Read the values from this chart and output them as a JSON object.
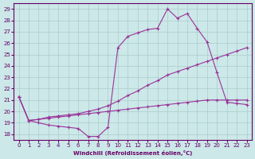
{
  "xlabel": "Windchill (Refroidissement éolien,°C)",
  "ylabel": "",
  "background_color": "#cce8e8",
  "grid_color": "#aacccc",
  "line_color": "#993399",
  "xlim": [
    -0.5,
    23.5
  ],
  "ylim": [
    17.5,
    29.5
  ],
  "xticks": [
    0,
    1,
    2,
    3,
    4,
    5,
    6,
    7,
    8,
    9,
    10,
    11,
    12,
    13,
    14,
    15,
    16,
    17,
    18,
    19,
    20,
    21,
    22,
    23
  ],
  "yticks": [
    18,
    19,
    20,
    21,
    22,
    23,
    24,
    25,
    26,
    27,
    28,
    29
  ],
  "line1_x": [
    0,
    1,
    2,
    3,
    4,
    5,
    6,
    7,
    8,
    9,
    10,
    11,
    12,
    13,
    14,
    15,
    16,
    17,
    18,
    19,
    20,
    21,
    22,
    23
  ],
  "line1_y": [
    21.3,
    19.2,
    19.0,
    18.8,
    18.7,
    18.6,
    18.5,
    17.8,
    17.8,
    18.6,
    25.6,
    26.6,
    26.9,
    27.2,
    27.3,
    29.0,
    28.2,
    28.6,
    27.3,
    26.1,
    23.4,
    20.8,
    20.7,
    20.6
  ],
  "line2_x": [
    0,
    1,
    2,
    3,
    4,
    5,
    6,
    7,
    8,
    9,
    10,
    11,
    12,
    13,
    14,
    15,
    16,
    17,
    18,
    19,
    20,
    21,
    22,
    23
  ],
  "line2_y": [
    21.3,
    19.2,
    19.3,
    19.5,
    19.6,
    19.7,
    19.8,
    20.0,
    20.2,
    20.5,
    20.9,
    21.4,
    21.8,
    22.3,
    22.7,
    23.2,
    23.5,
    23.8,
    24.1,
    24.4,
    24.7,
    25.0,
    25.3,
    25.6
  ],
  "line3_x": [
    0,
    1,
    2,
    3,
    4,
    5,
    6,
    7,
    8,
    9,
    10,
    11,
    12,
    13,
    14,
    15,
    16,
    17,
    18,
    19,
    20,
    21,
    22,
    23
  ],
  "line3_y": [
    21.3,
    19.2,
    19.3,
    19.4,
    19.5,
    19.6,
    19.7,
    19.8,
    19.9,
    20.0,
    20.1,
    20.2,
    20.3,
    20.4,
    20.5,
    20.6,
    20.7,
    20.8,
    20.9,
    21.0,
    21.0,
    21.0,
    21.0,
    21.0
  ]
}
